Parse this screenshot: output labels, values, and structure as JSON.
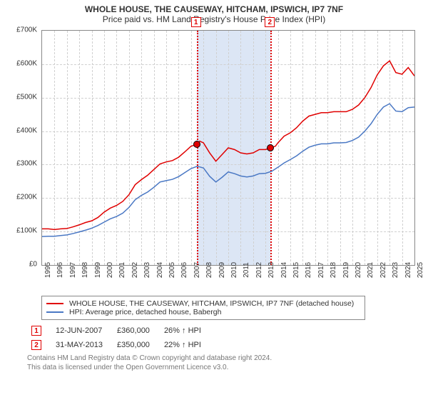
{
  "title": {
    "line1": "WHOLE HOUSE, THE CAUSEWAY, HITCHAM, IPSWICH, IP7 7NF",
    "line2": "Price paid vs. HM Land Registry's House Price Index (HPI)",
    "font_size_line1": 12,
    "font_size_line2": 12,
    "color": "#333333"
  },
  "chart": {
    "type": "line",
    "background_color": "#ffffff",
    "grid_color": "#d0d0d0",
    "border_color": "#888888",
    "x_axis": {
      "min_year": 1995,
      "max_year": 2025,
      "ticks": [
        1995,
        1996,
        1997,
        1998,
        1999,
        2000,
        2001,
        2002,
        2003,
        2004,
        2005,
        2006,
        2007,
        2008,
        2009,
        2010,
        2011,
        2012,
        2013,
        2014,
        2015,
        2016,
        2017,
        2018,
        2019,
        2020,
        2021,
        2022,
        2023,
        2024,
        2025
      ],
      "label_fontsize": 10,
      "label_rotation": -90
    },
    "y_axis": {
      "min": 0,
      "max": 700000,
      "tick_step": 100000,
      "ticks": [
        "£0",
        "£100K",
        "£200K",
        "£300K",
        "£400K",
        "£500K",
        "£600K",
        "£700K"
      ],
      "label_fontsize": 10
    },
    "shaded_band": {
      "from_year": 2007.45,
      "to_year": 2013.41,
      "color": "#dce6f5"
    },
    "series": [
      {
        "id": "property",
        "label": "WHOLE HOUSE, THE CAUSEWAY, HITCHAM, IPSWICH, IP7 7NF (detached house)",
        "color": "#e00000",
        "line_width": 1.5,
        "points": [
          [
            1995.0,
            108000
          ],
          [
            1995.5,
            108000
          ],
          [
            1996.0,
            106000
          ],
          [
            1996.5,
            108000
          ],
          [
            1997.0,
            109000
          ],
          [
            1997.5,
            114000
          ],
          [
            1998.0,
            120000
          ],
          [
            1998.5,
            127000
          ],
          [
            1999.0,
            132000
          ],
          [
            1999.5,
            142000
          ],
          [
            2000.0,
            158000
          ],
          [
            2000.5,
            170000
          ],
          [
            2001.0,
            178000
          ],
          [
            2001.5,
            190000
          ],
          [
            2002.0,
            210000
          ],
          [
            2002.5,
            240000
          ],
          [
            2003.0,
            255000
          ],
          [
            2003.5,
            268000
          ],
          [
            2004.0,
            285000
          ],
          [
            2004.5,
            302000
          ],
          [
            2005.0,
            308000
          ],
          [
            2005.5,
            312000
          ],
          [
            2006.0,
            322000
          ],
          [
            2006.5,
            338000
          ],
          [
            2007.0,
            355000
          ],
          [
            2007.45,
            360000
          ],
          [
            2007.7,
            370000
          ],
          [
            2008.0,
            365000
          ],
          [
            2008.5,
            335000
          ],
          [
            2009.0,
            310000
          ],
          [
            2009.5,
            330000
          ],
          [
            2010.0,
            350000
          ],
          [
            2010.5,
            345000
          ],
          [
            2011.0,
            335000
          ],
          [
            2011.5,
            332000
          ],
          [
            2012.0,
            335000
          ],
          [
            2012.5,
            345000
          ],
          [
            2013.0,
            345000
          ],
          [
            2013.41,
            350000
          ],
          [
            2013.8,
            355000
          ],
          [
            2014.0,
            365000
          ],
          [
            2014.5,
            385000
          ],
          [
            2015.0,
            395000
          ],
          [
            2015.5,
            410000
          ],
          [
            2016.0,
            430000
          ],
          [
            2016.5,
            445000
          ],
          [
            2017.0,
            450000
          ],
          [
            2017.5,
            455000
          ],
          [
            2018.0,
            455000
          ],
          [
            2018.5,
            458000
          ],
          [
            2019.0,
            458000
          ],
          [
            2019.5,
            458000
          ],
          [
            2020.0,
            465000
          ],
          [
            2020.5,
            478000
          ],
          [
            2021.0,
            500000
          ],
          [
            2021.5,
            530000
          ],
          [
            2022.0,
            568000
          ],
          [
            2022.5,
            595000
          ],
          [
            2023.0,
            610000
          ],
          [
            2023.5,
            575000
          ],
          [
            2024.0,
            570000
          ],
          [
            2024.5,
            590000
          ],
          [
            2025.0,
            565000
          ]
        ]
      },
      {
        "id": "hpi",
        "label": "HPI: Average price, detached house, Babergh",
        "color": "#4a78c4",
        "line_width": 1.5,
        "points": [
          [
            1995.0,
            85000
          ],
          [
            1995.5,
            86000
          ],
          [
            1996.0,
            86000
          ],
          [
            1996.5,
            88000
          ],
          [
            1997.0,
            90000
          ],
          [
            1997.5,
            94000
          ],
          [
            1998.0,
            99000
          ],
          [
            1998.5,
            104000
          ],
          [
            1999.0,
            110000
          ],
          [
            1999.5,
            118000
          ],
          [
            2000.0,
            128000
          ],
          [
            2000.5,
            138000
          ],
          [
            2001.0,
            145000
          ],
          [
            2001.5,
            155000
          ],
          [
            2002.0,
            172000
          ],
          [
            2002.5,
            195000
          ],
          [
            2003.0,
            208000
          ],
          [
            2003.5,
            218000
          ],
          [
            2004.0,
            232000
          ],
          [
            2004.5,
            248000
          ],
          [
            2005.0,
            252000
          ],
          [
            2005.5,
            256000
          ],
          [
            2006.0,
            264000
          ],
          [
            2006.5,
            276000
          ],
          [
            2007.0,
            288000
          ],
          [
            2007.5,
            295000
          ],
          [
            2008.0,
            290000
          ],
          [
            2008.5,
            265000
          ],
          [
            2009.0,
            248000
          ],
          [
            2009.5,
            262000
          ],
          [
            2010.0,
            278000
          ],
          [
            2010.5,
            273000
          ],
          [
            2011.0,
            266000
          ],
          [
            2011.5,
            263000
          ],
          [
            2012.0,
            266000
          ],
          [
            2012.5,
            273000
          ],
          [
            2013.0,
            274000
          ],
          [
            2013.5,
            280000
          ],
          [
            2014.0,
            292000
          ],
          [
            2014.5,
            305000
          ],
          [
            2015.0,
            315000
          ],
          [
            2015.5,
            326000
          ],
          [
            2016.0,
            340000
          ],
          [
            2016.5,
            352000
          ],
          [
            2017.0,
            358000
          ],
          [
            2017.5,
            362000
          ],
          [
            2018.0,
            362000
          ],
          [
            2018.5,
            365000
          ],
          [
            2019.0,
            365000
          ],
          [
            2019.5,
            366000
          ],
          [
            2020.0,
            372000
          ],
          [
            2020.5,
            382000
          ],
          [
            2021.0,
            400000
          ],
          [
            2021.5,
            422000
          ],
          [
            2022.0,
            450000
          ],
          [
            2022.5,
            472000
          ],
          [
            2023.0,
            482000
          ],
          [
            2023.5,
            460000
          ],
          [
            2024.0,
            458000
          ],
          [
            2024.5,
            470000
          ],
          [
            2025.0,
            472000
          ]
        ]
      }
    ],
    "events": [
      {
        "n": "1",
        "year": 2007.45,
        "price_y": 360000,
        "date": "12-JUN-2007",
        "price": "£360,000",
        "hpi_diff": "26% ↑ HPI",
        "marker_fill": "#e00000",
        "marker_border": "#000000"
      },
      {
        "n": "2",
        "year": 2013.41,
        "price_y": 350000,
        "date": "31-MAY-2013",
        "price": "£350,000",
        "hpi_diff": "22% ↑ HPI",
        "marker_fill": "#e00000",
        "marker_border": "#000000"
      }
    ]
  },
  "legend": {
    "border_color": "#888888",
    "font_size": 10.5
  },
  "footnote": {
    "line1": "Contains HM Land Registry data © Crown copyright and database right 2024.",
    "line2": "This data is licensed under the Open Government Licence v3.0.",
    "font_size": 10,
    "color": "#777777"
  }
}
